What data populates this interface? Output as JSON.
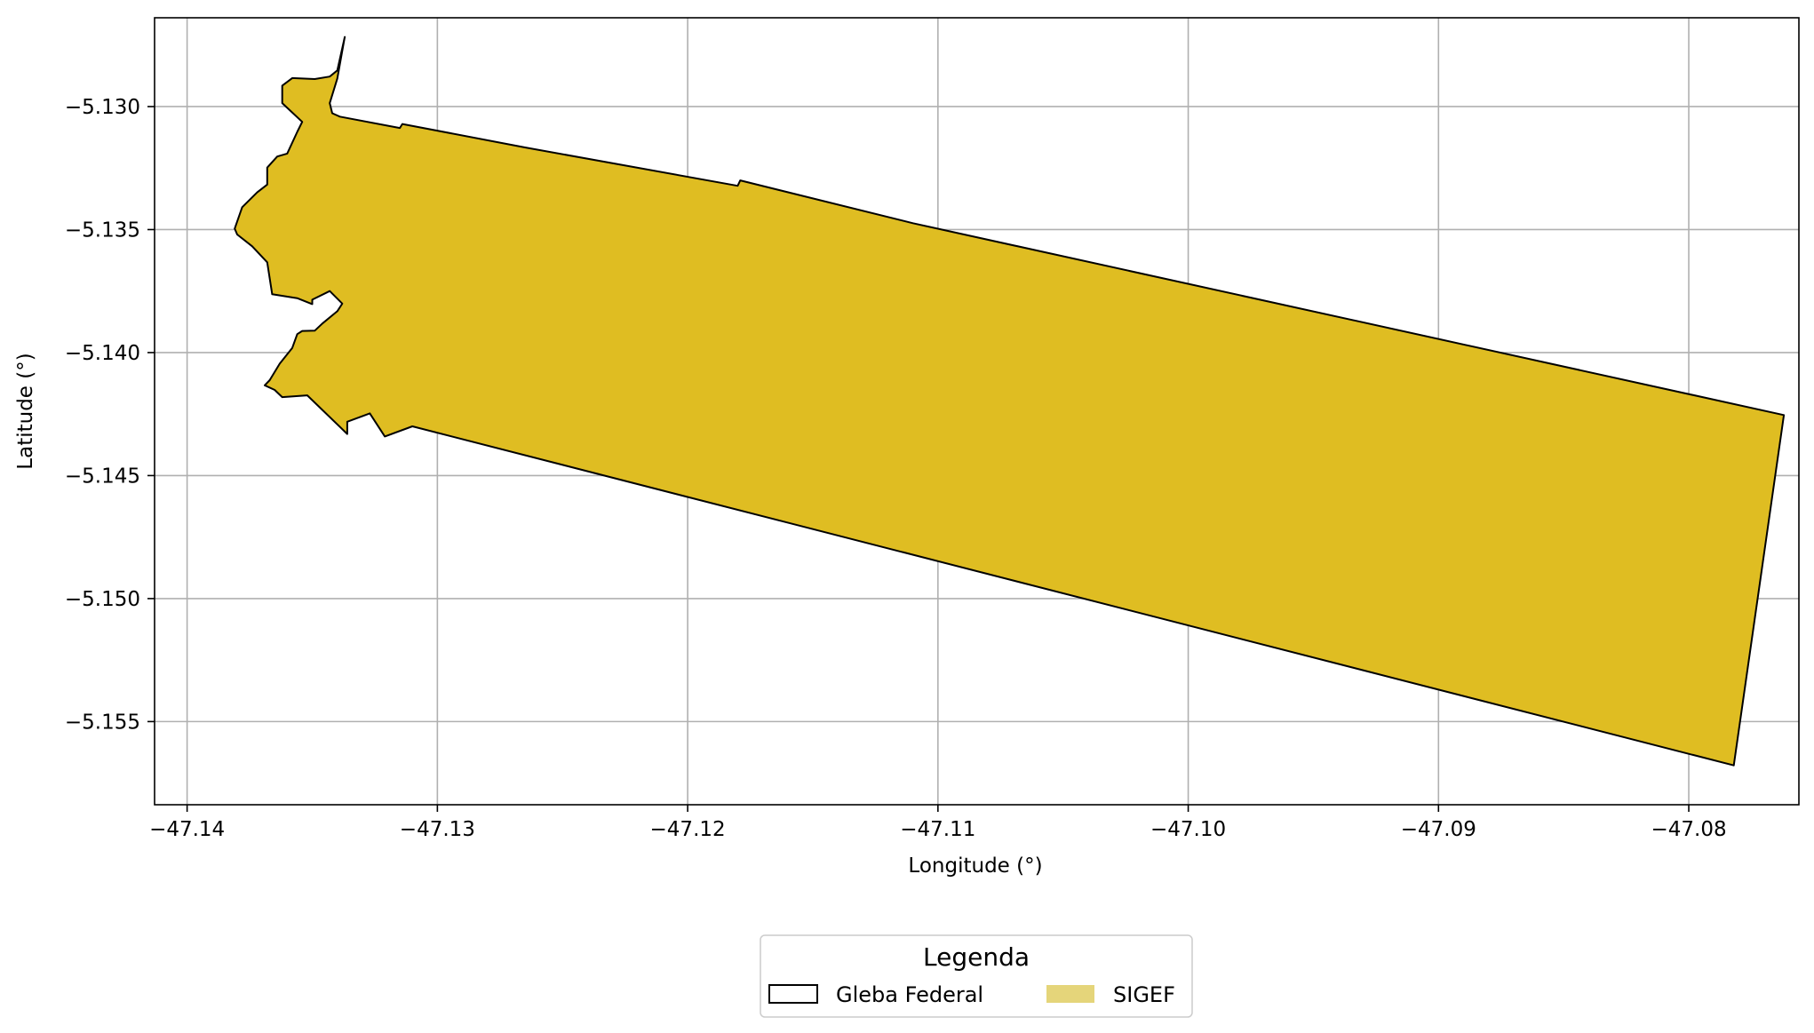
{
  "chart_data": {
    "type": "map",
    "xlabel": "Longitude (°)",
    "ylabel": "Latitude (°)",
    "xlim": [
      -47.1413,
      -47.0756
    ],
    "ylim": [
      -5.15838,
      -5.12639
    ],
    "grid": true,
    "x_ticks": [
      {
        "value": -47.14,
        "label": "−47.14"
      },
      {
        "value": -47.13,
        "label": "−47.13"
      },
      {
        "value": -47.12,
        "label": "−47.12"
      },
      {
        "value": -47.11,
        "label": "−47.11"
      },
      {
        "value": -47.1,
        "label": "−47.10"
      },
      {
        "value": -47.09,
        "label": "−47.09"
      },
      {
        "value": -47.08,
        "label": "−47.08"
      }
    ],
    "y_ticks": [
      {
        "value": -5.13,
        "label": "−5.130"
      },
      {
        "value": -5.135,
        "label": "−5.135"
      },
      {
        "value": -5.14,
        "label": "−5.140"
      },
      {
        "value": -5.145,
        "label": "−5.145"
      },
      {
        "value": -5.15,
        "label": "−5.150"
      },
      {
        "value": -5.155,
        "label": "−5.155"
      }
    ],
    "layers": [
      {
        "name": "SIGEF",
        "fill": "#dfbd22",
        "stroke": "#000000",
        "polygon": [
          [
            -47.1337,
            -5.12717
          ],
          [
            -47.134,
            -5.12886
          ],
          [
            -47.1343,
            -5.12986
          ],
          [
            -47.1342,
            -5.13027
          ],
          [
            -47.1339,
            -5.13041
          ],
          [
            -47.1315,
            -5.13087
          ],
          [
            -47.1314,
            -5.13071
          ],
          [
            -47.1265,
            -5.13166
          ],
          [
            -47.118,
            -5.13322
          ],
          [
            -47.1179,
            -5.133
          ],
          [
            -47.111,
            -5.13474
          ],
          [
            -47.0762,
            -5.14254
          ],
          [
            -47.0782,
            -5.15678
          ],
          [
            -47.131,
            -5.143
          ],
          [
            -47.1321,
            -5.14341
          ],
          [
            -47.1327,
            -5.14247
          ],
          [
            -47.1336,
            -5.14281
          ],
          [
            -47.1336,
            -5.14331
          ],
          [
            -47.1352,
            -5.14174
          ],
          [
            -47.1362,
            -5.14181
          ],
          [
            -47.1365,
            -5.14152
          ],
          [
            -47.1369,
            -5.14133
          ],
          [
            -47.1367,
            -5.14112
          ],
          [
            -47.1363,
            -5.14045
          ],
          [
            -47.1358,
            -5.13981
          ],
          [
            -47.1356,
            -5.13925
          ],
          [
            -47.1354,
            -5.13912
          ],
          [
            -47.1349,
            -5.13911
          ],
          [
            -47.1346,
            -5.13882
          ],
          [
            -47.134,
            -5.13832
          ],
          [
            -47.1338,
            -5.13801
          ],
          [
            -47.1343,
            -5.1375
          ],
          [
            -47.135,
            -5.13785
          ],
          [
            -47.135,
            -5.13803
          ],
          [
            -47.1356,
            -5.13779
          ],
          [
            -47.1366,
            -5.13763
          ],
          [
            -47.1368,
            -5.13633
          ],
          [
            -47.1374,
            -5.13568
          ],
          [
            -47.138,
            -5.1352
          ],
          [
            -47.1381,
            -5.13496
          ],
          [
            -47.1378,
            -5.13409
          ],
          [
            -47.1372,
            -5.13349
          ],
          [
            -47.1368,
            -5.13317
          ],
          [
            -47.1368,
            -5.13248
          ],
          [
            -47.1364,
            -5.13203
          ],
          [
            -47.136,
            -5.13191
          ],
          [
            -47.1356,
            -5.13103
          ],
          [
            -47.1354,
            -5.13062
          ],
          [
            -47.1362,
            -5.12986
          ],
          [
            -47.1362,
            -5.12915
          ],
          [
            -47.1358,
            -5.12884
          ],
          [
            -47.1349,
            -5.12888
          ],
          [
            -47.1343,
            -5.12878
          ],
          [
            -47.134,
            -5.12853
          ],
          [
            -47.1337,
            -5.12717
          ]
        ]
      }
    ],
    "legend": {
      "title": "Legenda",
      "placement": "below",
      "entries": [
        {
          "label": "Gleba Federal",
          "style": "outline",
          "stroke": "#000000",
          "fill": "#ffffff"
        },
        {
          "label": "SIGEF",
          "style": "filled",
          "fill": "#e5d57a"
        }
      ]
    },
    "colors": {
      "grid": "#b0b0b0",
      "axes": "#000000",
      "background": "#ffffff"
    }
  }
}
